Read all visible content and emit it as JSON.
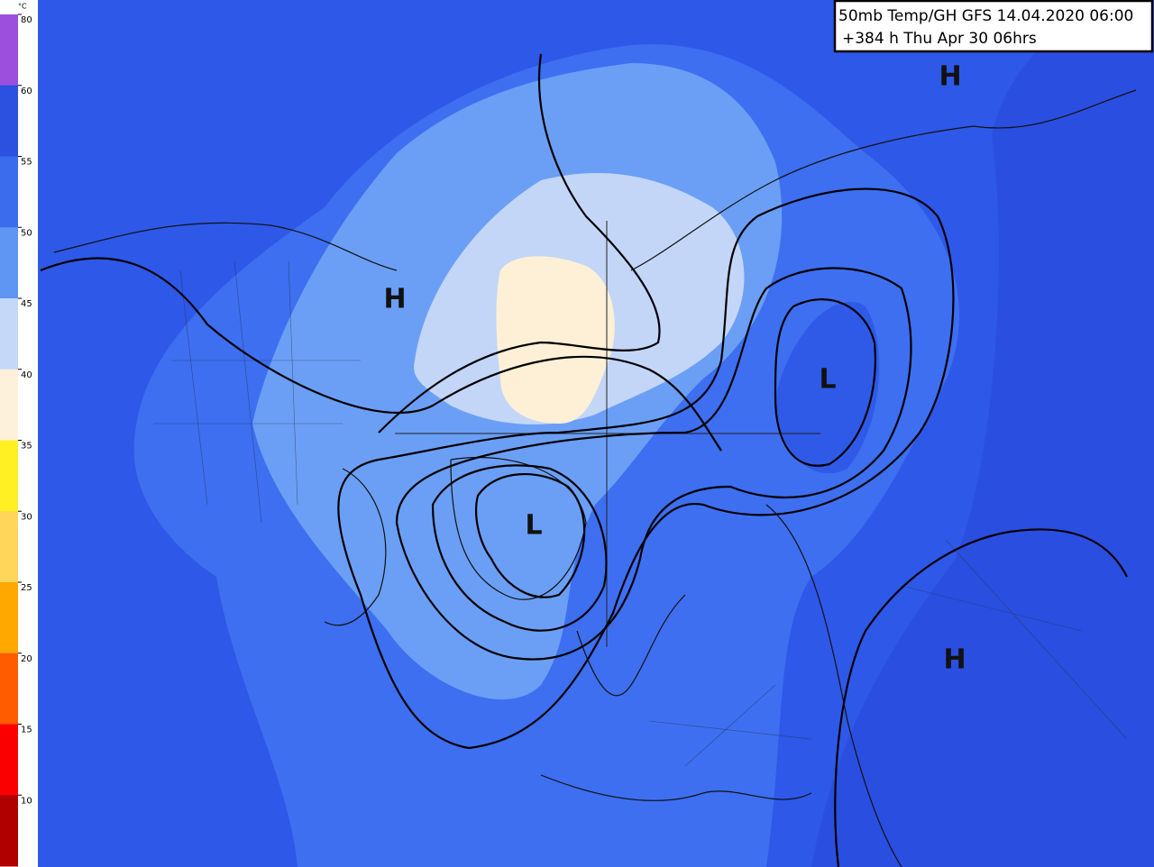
{
  "header": {
    "title": "50mb Temp/GH GFS 14.04.2020 06:00",
    "subtitle": "+384 h Thu Apr 30 06hrs"
  },
  "legend": {
    "unit": "°C",
    "labels": [
      "80",
      "60",
      "55",
      "50",
      "45",
      "40",
      "35",
      "30",
      "25",
      "20",
      "15",
      "10"
    ],
    "colors": [
      "#9b4fdc",
      "#2c50e0",
      "#3a6ced",
      "#5f96f3",
      "#c6d8f8",
      "#fdf1dc",
      "#fff024",
      "#ffd65a",
      "#ffa800",
      "#ff5c00",
      "#fb0000",
      "#b00000"
    ]
  },
  "pressure_centers": [
    {
      "label": "H"
    },
    {
      "label": "H"
    },
    {
      "label": "L"
    },
    {
      "label": "L"
    },
    {
      "label": "H"
    }
  ]
}
